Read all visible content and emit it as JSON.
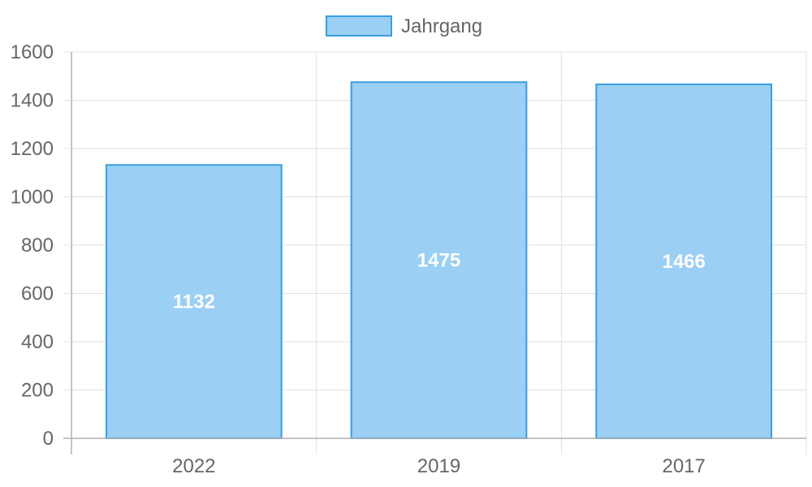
{
  "chart_data": {
    "type": "bar",
    "categories": [
      "2022",
      "2019",
      "2017"
    ],
    "series": [
      {
        "name": "Jahrgang",
        "values": [
          1132,
          1475,
          1466
        ]
      }
    ],
    "title": "",
    "xlabel": "",
    "ylabel": "",
    "ylim": [
      0,
      1600
    ],
    "yticks": [
      0,
      200,
      400,
      600,
      800,
      1000,
      1200,
      1400,
      1600
    ],
    "grid": true,
    "legend_position": "top-center",
    "data_labels": true,
    "colors": {
      "bar_fill": "#9bcff4",
      "bar_stroke": "#3b9ee0",
      "grid": "#e0e0e0",
      "axis": "#b0b0b0",
      "text": "#666666",
      "data_label": "#ffffff"
    }
  }
}
